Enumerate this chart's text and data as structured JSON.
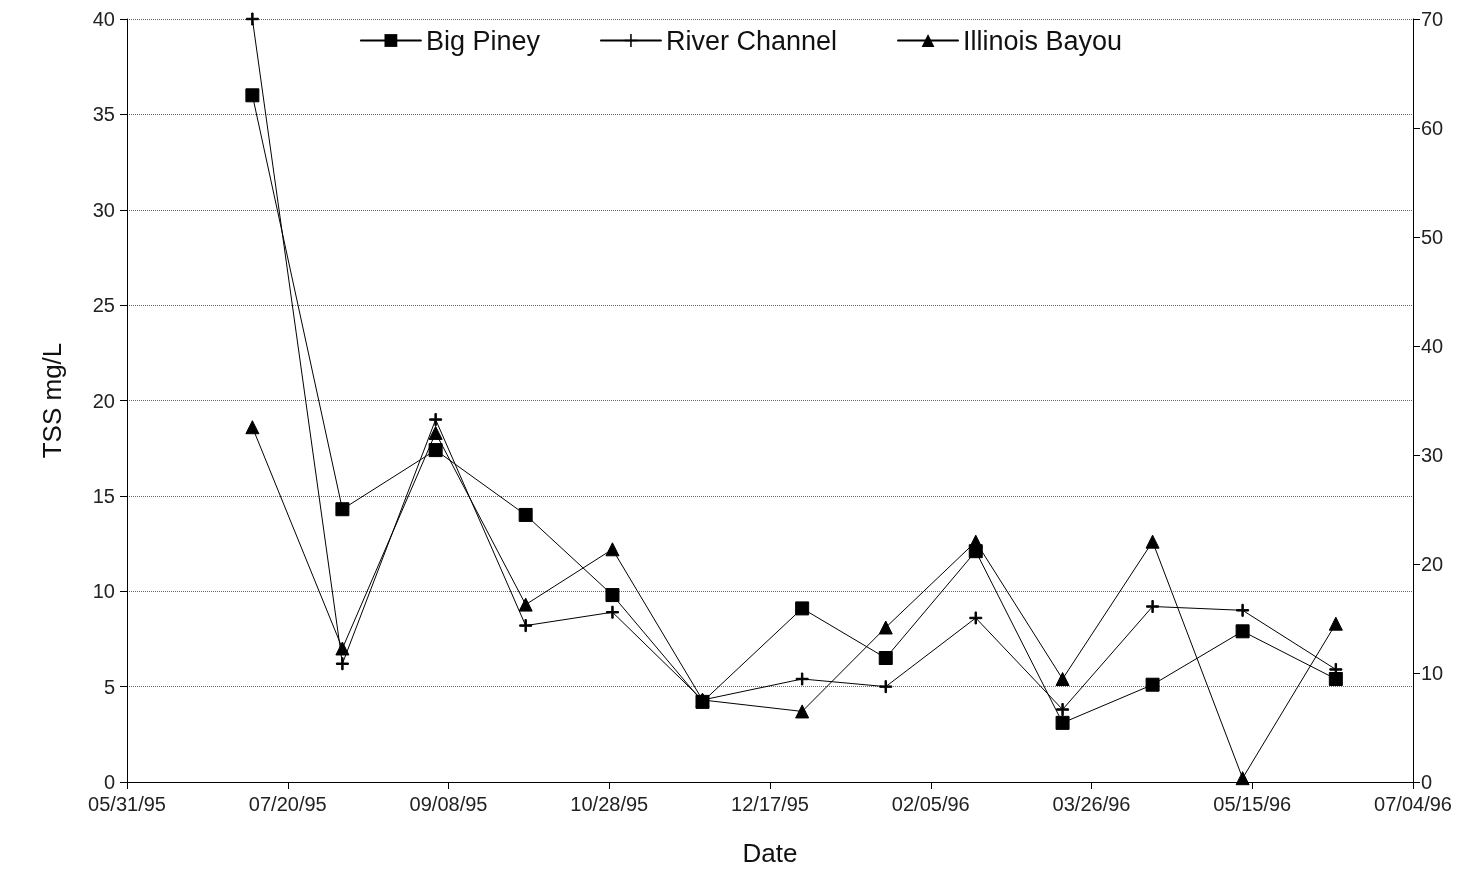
{
  "chart_data": {
    "type": "line",
    "xlabel": "Date",
    "ylabel": "TSS mg/L",
    "x": [
      "1995-07-09",
      "1995-08-06",
      "1995-09-04",
      "1995-10-02",
      "1995-10-29",
      "1995-11-26",
      "1995-12-27",
      "1996-01-22",
      "1996-02-19",
      "1996-03-17",
      "1996-04-14",
      "1996-05-12",
      "1996-06-10"
    ],
    "series": [
      {
        "name": "Big Piney",
        "color": "#000000",
        "marker": "square",
        "values": [
          36.0,
          14.3,
          17.4,
          14.0,
          9.8,
          4.2,
          9.1,
          6.5,
          12.1,
          3.1,
          5.1,
          7.9,
          5.4
        ]
      },
      {
        "name": "River Channel",
        "color": "#000000",
        "marker": "cross",
        "values": [
          40.0,
          6.2,
          19.0,
          8.2,
          8.9,
          4.3,
          5.4,
          5.0,
          8.6,
          3.8,
          9.2,
          9.0,
          5.9
        ]
      },
      {
        "name": "Illinois Bayou",
        "color": "#000000",
        "marker": "triangle",
        "values": [
          18.6,
          7.0,
          18.3,
          9.3,
          12.2,
          4.3,
          3.7,
          8.1,
          12.6,
          5.4,
          12.6,
          0.2,
          8.3
        ]
      }
    ],
    "xlim": [
      "1995-05-31",
      "1996-07-04"
    ],
    "xticks": [
      {
        "value": "1995-05-31",
        "label": "05/31/95"
      },
      {
        "value": "1995-07-20",
        "label": "07/20/95"
      },
      {
        "value": "1995-09-08",
        "label": "09/08/95"
      },
      {
        "value": "1995-10-28",
        "label": "10/28/95"
      },
      {
        "value": "1995-12-17",
        "label": "12/17/95"
      },
      {
        "value": "1996-02-05",
        "label": "02/05/96"
      },
      {
        "value": "1996-03-26",
        "label": "03/26/96"
      },
      {
        "value": "1996-05-15",
        "label": "05/15/96"
      },
      {
        "value": "1996-07-04",
        "label": "07/04/96"
      }
    ],
    "ylim": [
      0,
      40
    ],
    "yticks": [
      0,
      5,
      10,
      15,
      20,
      25,
      30,
      35,
      40
    ],
    "y2lim": [
      0,
      70
    ],
    "y2ticks": [
      0,
      10,
      20,
      30,
      40,
      50,
      60,
      70
    ],
    "grid": "y",
    "legend": "top",
    "line_style": "solid"
  }
}
